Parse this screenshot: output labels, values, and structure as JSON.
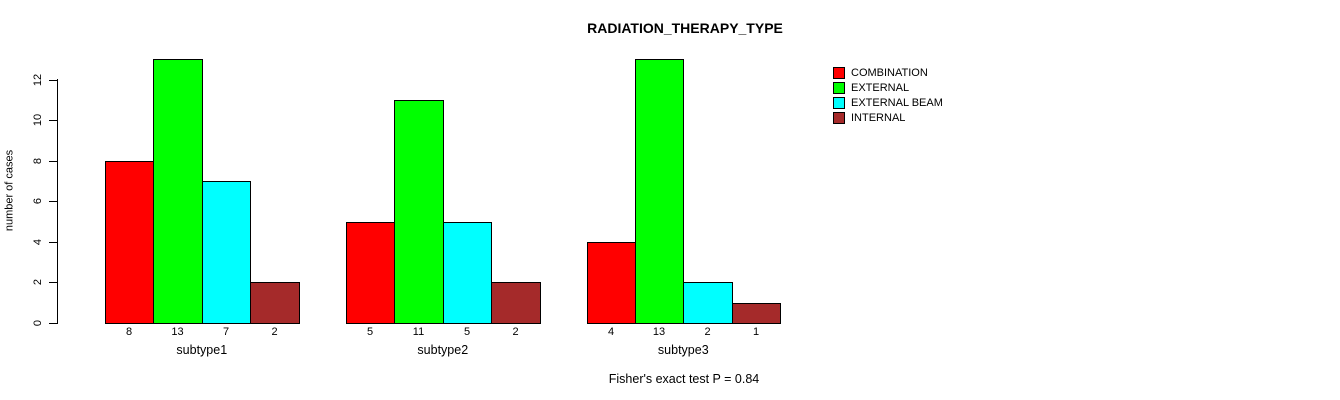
{
  "figure": {
    "title": "RADIATION_THERAPY_TYPE",
    "ylabel": "number of cases",
    "footnote": "Fisher's exact test P = 0.84",
    "background": "#FFFFFF",
    "text_color": "#000000"
  },
  "chart_data": {
    "type": "bar",
    "grouped": true,
    "title": "RADIATION_THERAPY_TYPE",
    "xlabel": "",
    "ylabel": "number of cases",
    "categories": [
      "subtype1",
      "subtype2",
      "subtype3"
    ],
    "series": [
      {
        "name": "COMBINATION",
        "color": "#FF0000",
        "values": [
          8,
          5,
          4
        ]
      },
      {
        "name": "EXTERNAL",
        "color": "#00FF00",
        "values": [
          13,
          11,
          13
        ]
      },
      {
        "name": "EXTERNAL BEAM",
        "color": "#00FFFF",
        "values": [
          7,
          5,
          2
        ]
      },
      {
        "name": "INTERNAL",
        "color": "#A52A2A",
        "values": [
          2,
          2,
          1
        ]
      }
    ],
    "bar_border_color": "#000000",
    "ylim": [
      0,
      13
    ],
    "yticks": [
      0,
      2,
      4,
      6,
      8,
      10,
      12
    ],
    "grid": false,
    "show_values_under_bars": true,
    "legend_position": "top-right",
    "annotation": "Fisher's exact test P = 0.84"
  }
}
